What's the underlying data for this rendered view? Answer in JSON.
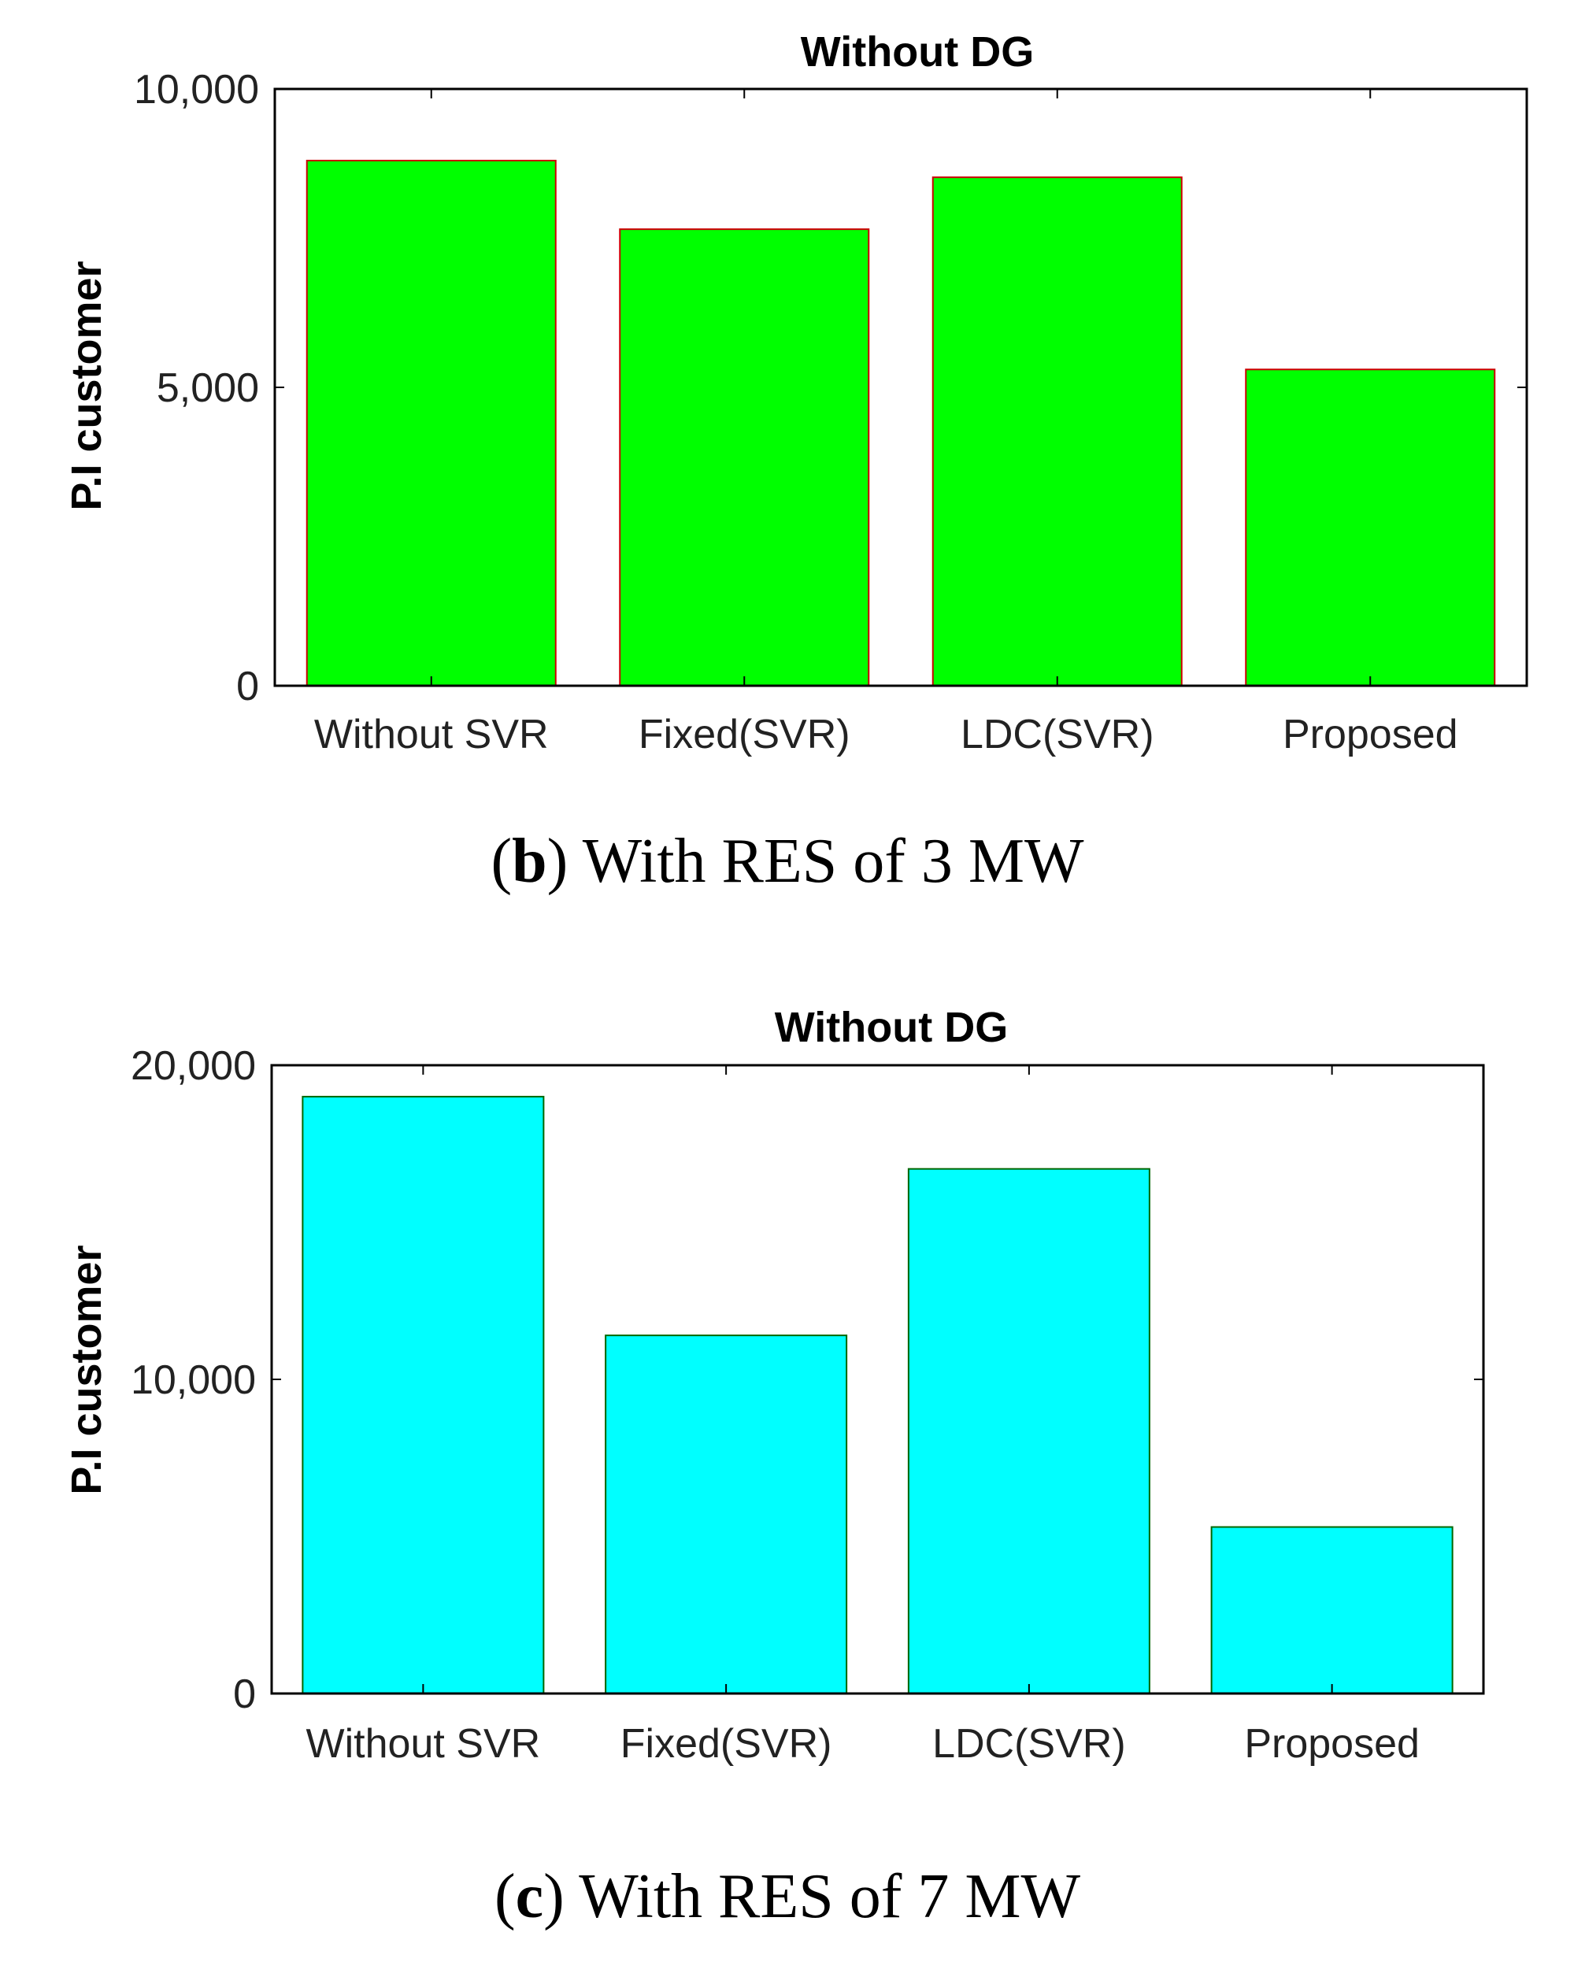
{
  "chart_data": [
    {
      "type": "bar",
      "title": "Without DG",
      "ylabel": "P.I customer",
      "xlabel": "",
      "categories": [
        "Without SVR",
        "Fixed(SVR)",
        "LDC(SVR)",
        "Proposed"
      ],
      "values": [
        8800,
        7650,
        8520,
        5300
      ],
      "ylim": [
        0,
        10000
      ],
      "yticks": [
        0,
        5000,
        10000
      ],
      "ytick_labels": [
        "0",
        "5,000",
        "10,000"
      ],
      "bar_color": "#00ff00",
      "bar_edge_color": "#cc0000",
      "grid": false,
      "caption": {
        "letter": "b",
        "text": "With RES of 3 MW"
      }
    },
    {
      "type": "bar",
      "title": "Without DG",
      "ylabel": "P.I customer",
      "xlabel": "",
      "categories": [
        "Without SVR",
        "Fixed(SVR)",
        "LDC(SVR)",
        "Proposed"
      ],
      "values": [
        19000,
        11400,
        16700,
        5300
      ],
      "ylim": [
        0,
        20000
      ],
      "yticks": [
        0,
        10000,
        20000
      ],
      "ytick_labels": [
        "0",
        "10,000",
        "20,000"
      ],
      "bar_color": "#00ffff",
      "bar_edge_color": "#006600",
      "grid": false,
      "caption": {
        "letter": "c",
        "text": "With RES of 7 MW"
      }
    }
  ]
}
